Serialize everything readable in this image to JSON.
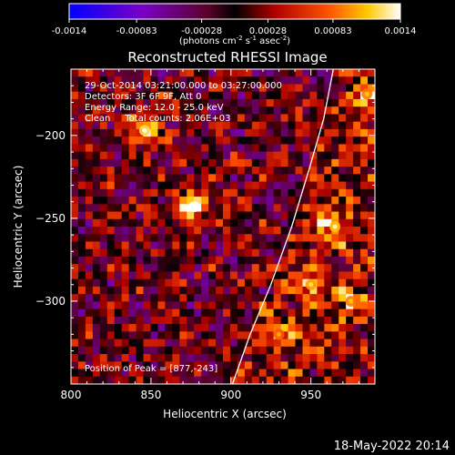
{
  "chart_data": {
    "type": "heatmap",
    "title": "Reconstructed RHESSI Image",
    "xlabel": "Heliocentric X (arcsec)",
    "ylabel": "Heliocentric Y (arcsec)",
    "xlim": [
      800,
      990
    ],
    "ylim": [
      -350,
      -160
    ],
    "x_ticks": [
      800,
      850,
      900,
      950
    ],
    "y_ticks": [
      -200,
      -250,
      -300
    ],
    "colorbar": {
      "min": -0.0014,
      "max": 0.0014,
      "ticks": [
        "-0.0014",
        "-0.00083",
        "-0.00028",
        "0.00028",
        "0.00083",
        "0.0014"
      ],
      "unit_base": "(photons cm",
      "unit_exp1": "-2",
      "unit_mid1": " s",
      "unit_exp2": "-1",
      "unit_mid2": " asec",
      "unit_exp3": "-2",
      "unit_end": ")"
    },
    "annotations": {
      "time_range": "29-Oct-2014 03:21:00.000 to 03:27:00.000",
      "detectors": "Detectors: 3F 6F 9F, Att 0",
      "energy": "Energy Range: 12.0 - 25.0 keV",
      "clean": "Clean     Total counts: 2.06E+03",
      "peak": "Position of Peak = [877,-243]"
    },
    "limb_curve": [
      [
        901,
        -350
      ],
      [
        912,
        -320
      ],
      [
        925,
        -290
      ],
      [
        938,
        -255
      ],
      [
        949,
        -220
      ],
      [
        958,
        -190
      ],
      [
        964,
        -160
      ]
    ],
    "bright_spots": [
      {
        "x": 877,
        "y": -243,
        "value": 0.0014
      },
      {
        "x": 846,
        "y": -197,
        "value": 0.0012
      },
      {
        "x": 965,
        "y": -255,
        "value": 0.0011
      },
      {
        "x": 950,
        "y": -290,
        "value": 0.001
      },
      {
        "x": 975,
        "y": -300,
        "value": 0.0009
      },
      {
        "x": 930,
        "y": -320,
        "value": 0.0008
      },
      {
        "x": 985,
        "y": -175,
        "value": 0.0009
      }
    ]
  },
  "footer_date": "18-May-2022 20:14"
}
